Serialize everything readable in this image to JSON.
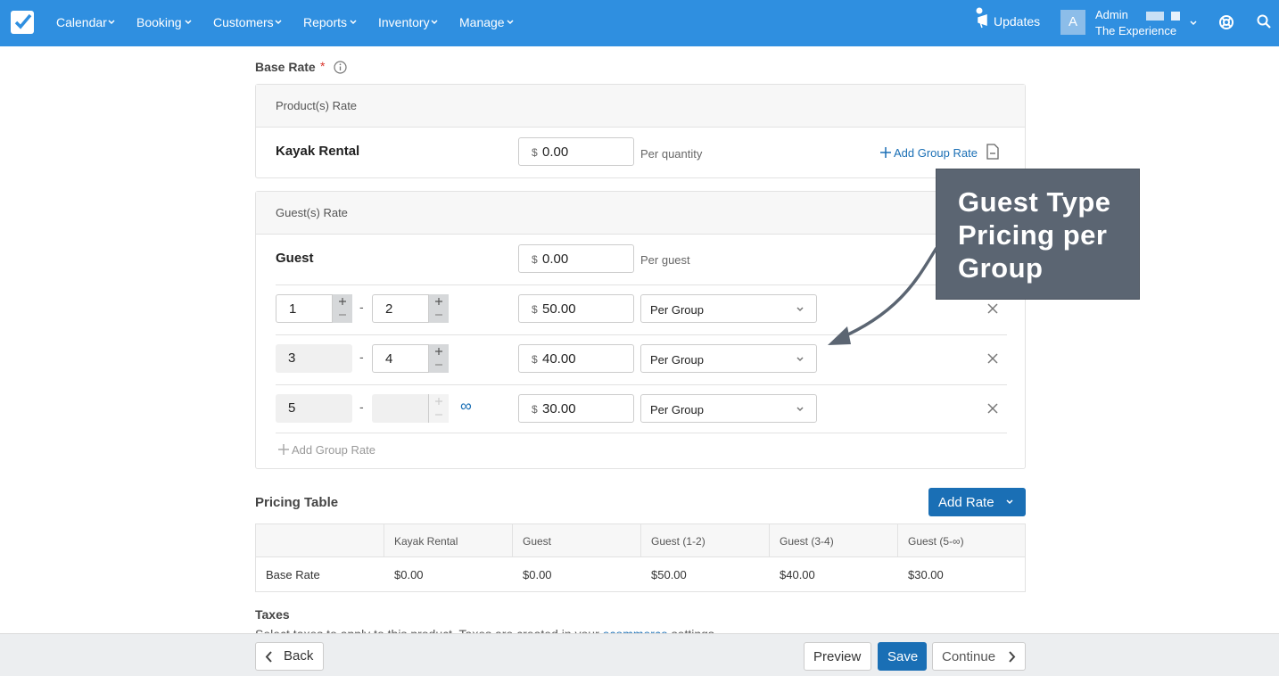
{
  "nav": {
    "items": [
      "Calendar",
      "Booking",
      "Customers",
      "Reports",
      "Inventory",
      "Manage"
    ],
    "updates": "Updates",
    "avatar": "A",
    "user": "Admin",
    "company": "The Experience"
  },
  "base_rate": {
    "title": "Base Rate",
    "required": "*"
  },
  "products": {
    "header": "Product(s) Rate",
    "name": "Kayak Rental",
    "currency": "$",
    "price": "0.00",
    "unit": "Per quantity",
    "add": "Add Group Rate"
  },
  "guests": {
    "header": "Guest(s) Rate",
    "name": "Guest",
    "currency": "$",
    "price": "0.00",
    "unit": "Per guest",
    "rows": [
      {
        "from": "1",
        "to": "2",
        "currency": "$",
        "price": "50.00",
        "type": "Per Group"
      },
      {
        "from": "3",
        "to": "4",
        "currency": "$",
        "price": "40.00",
        "type": "Per Group"
      },
      {
        "from": "5",
        "infinity": "∞",
        "currency": "$",
        "price": "30.00",
        "type": "Per Group"
      }
    ],
    "add": "Add Group Rate"
  },
  "callout": "Guest Type Pricing per Group",
  "pricing_table": {
    "title": "Pricing Table",
    "add_button": "Add Rate",
    "headers": [
      "Kayak Rental",
      "Guest",
      "Guest (1-2)",
      "Guest (3-4)",
      "Guest (5-∞)"
    ],
    "rows": [
      [
        "Base Rate",
        "$0.00",
        "$0.00",
        "$50.00",
        "$40.00",
        "$30.00"
      ]
    ]
  },
  "taxes": {
    "title": "Taxes",
    "text": "Select taxes to apply to this product. Taxes are created in your ",
    "link": "ecommerce",
    "text_end": " settings."
  },
  "footer": {
    "back": "Back",
    "preview": "Preview",
    "save": "Save",
    "continue": "Continue"
  }
}
